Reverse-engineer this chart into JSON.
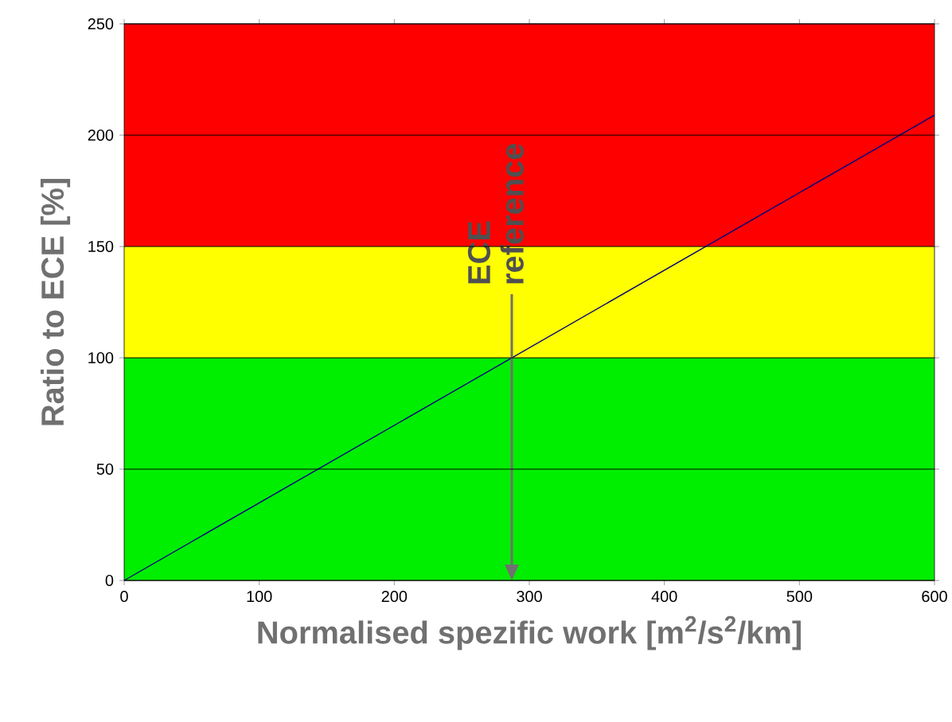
{
  "chart_data": {
    "type": "line",
    "xlabel": "Normalised spezific work [m$^{2}$/s$^{2}$/km]",
    "ylabel": "Ratio to ECE  [%]",
    "x": [
      0,
      600
    ],
    "series": [
      {
        "color": "#000080",
        "values": [
          0,
          209
        ]
      }
    ],
    "xlim": [
      0,
      600
    ],
    "xticks": [
      0,
      100,
      200,
      300,
      400,
      500,
      600
    ],
    "ylim": [
      0,
      250
    ],
    "yticks": [
      0,
      50,
      100,
      150,
      200,
      250
    ],
    "grid": "y",
    "marker": "none",
    "line_style": "solid",
    "bands": [
      {
        "axis": "y",
        "from": 0,
        "to": 100,
        "color": "#00ee00"
      },
      {
        "axis": "y",
        "from": 100,
        "to": 150,
        "color": "#ffff00"
      },
      {
        "axis": "y",
        "from": 150,
        "to": 250,
        "color": "#ff0000"
      }
    ],
    "annotations": [
      {
        "text": "ECE reference",
        "x": 287,
        "y": 100
      }
    ]
  }
}
